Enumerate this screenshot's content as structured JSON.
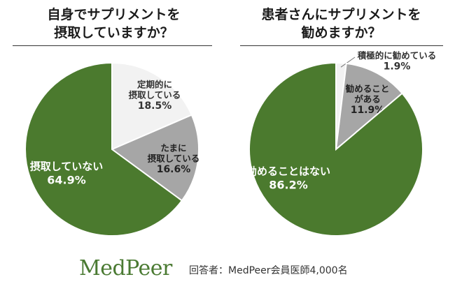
{
  "chart_data": [
    {
      "type": "pie",
      "title_lines": [
        "自身でサプリメントを",
        "摂取していますか？"
      ],
      "slices": [
        {
          "label_lines": [
            "定期的に",
            "摂取している"
          ],
          "value": 18.5,
          "value_label": "18.5%",
          "color": "#f2f2f2",
          "text_color": "#333333"
        },
        {
          "label_lines": [
            "たまに",
            "摂取している"
          ],
          "value": 16.6,
          "value_label": "16.6%",
          "color": "#a6a6a6",
          "text_color": "#222222"
        },
        {
          "label_lines": [
            "摂取していない"
          ],
          "value": 64.9,
          "value_label": "64.9%",
          "color": "#4b7a2e",
          "text_color": "#ffffff"
        }
      ]
    },
    {
      "type": "pie",
      "title_lines": [
        "患者さんにサプリメントを",
        "勧めますか？"
      ],
      "slices": [
        {
          "label_lines": [
            "積極的に勧めている"
          ],
          "value": 1.9,
          "value_label": "1.9%",
          "color": "#f2f2f2",
          "text_color": "#333333"
        },
        {
          "label_lines": [
            "勧めること",
            "がある"
          ],
          "value": 11.9,
          "value_label": "11.9%",
          "color": "#a6a6a6",
          "text_color": "#222222"
        },
        {
          "label_lines": [
            "勧めることはない"
          ],
          "value": 86.2,
          "value_label": "86.2%",
          "color": "#4b7a2e",
          "text_color": "#ffffff"
        }
      ]
    }
  ],
  "footer": {
    "logo": "MedPeer",
    "respondents": "回答者：MedPeer会員医師4,000名",
    "logo_color": "#4a7a32"
  }
}
